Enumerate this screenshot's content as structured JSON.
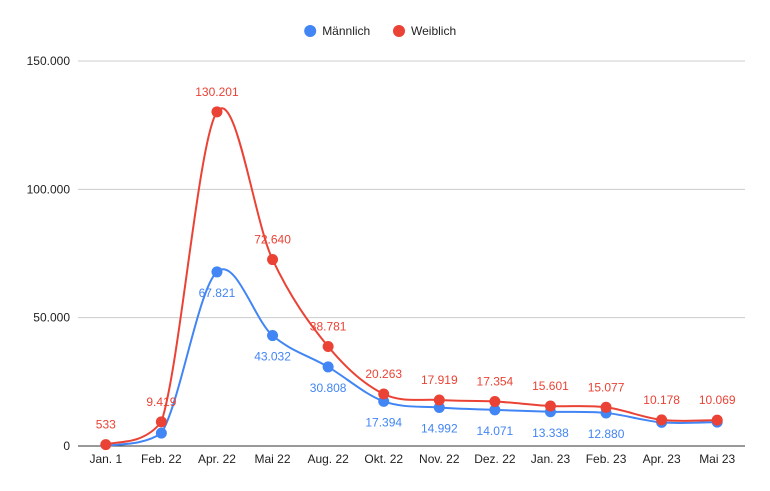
{
  "chart_data": {
    "type": "line",
    "categories": [
      "Jan. 1",
      "Feb. 22",
      "Apr. 22",
      "Mai 22",
      "Aug. 22",
      "Okt. 22",
      "Nov. 22",
      "Dez. 22",
      "Jan. 23",
      "Feb. 23",
      "Apr. 23",
      "Mai 23"
    ],
    "series": [
      {
        "name": "Männlich",
        "color": "#4285f4",
        "values": [
          null,
          5000,
          67821,
          43032,
          30808,
          17394,
          14992,
          14071,
          13338,
          12880,
          9200,
          9300
        ],
        "labels": [
          "",
          "",
          "67.821",
          "43.032",
          "30.808",
          "17.394",
          "14.992",
          "14.071",
          "13.338",
          "12.880",
          "",
          ""
        ]
      },
      {
        "name": "Weiblich",
        "color": "#ea4335",
        "values": [
          533,
          9419,
          130201,
          72640,
          38781,
          20263,
          17919,
          17354,
          15601,
          15077,
          10178,
          10069
        ],
        "labels": [
          "533",
          "9.419",
          "130.201",
          "72.640",
          "38.781",
          "20.263",
          "17.919",
          "17.354",
          "15.601",
          "15.077",
          "10.178",
          "10.069"
        ]
      }
    ],
    "ylim": [
      0,
      150000
    ],
    "yticks": [
      0,
      50000,
      100000,
      150000
    ],
    "ytick_labels": [
      "0",
      "50.000",
      "100.000",
      "150.000"
    ],
    "grid": true,
    "legend": "top-center"
  }
}
